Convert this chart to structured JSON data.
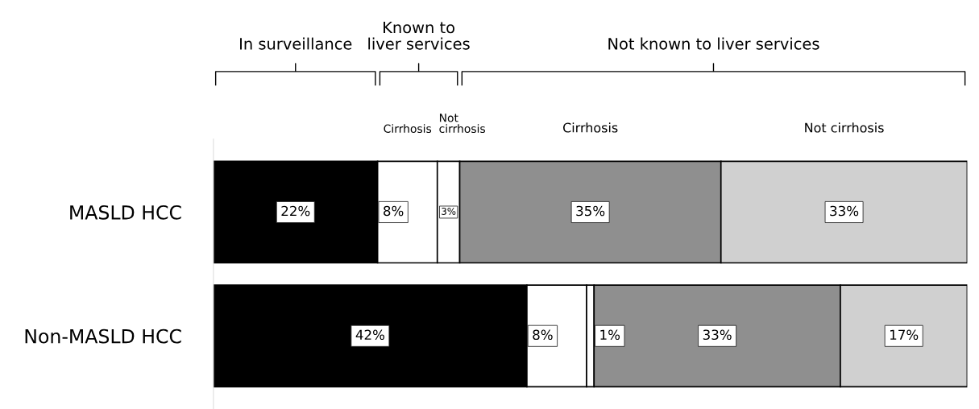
{
  "chart_data": {
    "type": "bar",
    "orientation": "horizontal",
    "stacked": true,
    "tick_labels": "y",
    "grid": false,
    "categories": [
      "MASLD HCC",
      "Non-MASLD HCC"
    ],
    "series": [
      {
        "color": "#000000",
        "values": [
          22,
          42
        ],
        "value_labels": [
          "22%",
          "42%"
        ]
      },
      {
        "name": "Cirrhosis",
        "color": "#ffffff",
        "values": [
          8,
          8
        ],
        "value_labels": [
          "8%",
          "8%"
        ]
      },
      {
        "name": "Not cirrhosis",
        "color": "#ffffff",
        "values": [
          3,
          1
        ],
        "value_labels": [
          "3%",
          "1%"
        ]
      },
      {
        "name": "Cirrhosis",
        "color": "#8f8f8f",
        "values": [
          35,
          33
        ],
        "value_labels": [
          "35%",
          "33%"
        ]
      },
      {
        "name": "Not cirrhosis",
        "color": "#d0d0d0",
        "values": [
          33,
          17
        ],
        "value_labels": [
          "33%",
          "17%"
        ]
      }
    ],
    "annotations": [
      "In surveillance",
      "Known to\nliver services",
      "Not known to liver services"
    ]
  }
}
